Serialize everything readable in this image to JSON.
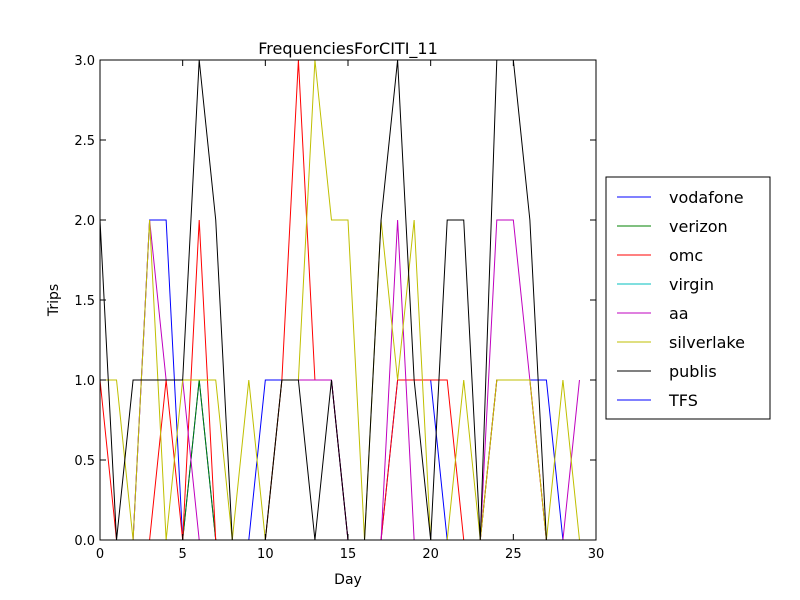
{
  "chart_data": {
    "type": "line",
    "title": "FrequenciesForCITI_11",
    "xlabel": "Day",
    "ylabel": "Trips",
    "xlim": [
      0,
      30
    ],
    "ylim": [
      0,
      3
    ],
    "x_ticks": [
      "0",
      "5",
      "10",
      "15",
      "20",
      "25",
      "30"
    ],
    "y_ticks": [
      "0.0",
      "0.5",
      "1.0",
      "1.5",
      "2.0",
      "2.5",
      "3.0"
    ],
    "grid": false,
    "legend_position": "outside-right",
    "x": [
      0,
      1,
      2,
      3,
      4,
      5,
      6,
      7,
      8,
      9,
      10,
      11,
      12,
      13,
      14,
      15,
      16,
      17,
      18,
      19,
      20,
      21,
      22,
      23,
      24,
      25,
      26,
      27,
      28,
      29
    ],
    "series": [
      {
        "name": "vodafone",
        "color": "#0000ff",
        "values": [
          0,
          0,
          0,
          2,
          2,
          0,
          1,
          0,
          0,
          0,
          1,
          1,
          1,
          1,
          1,
          0,
          0,
          0,
          1,
          1,
          1,
          0,
          0,
          0,
          1,
          1,
          1,
          1,
          0,
          0
        ]
      },
      {
        "name": "verizon",
        "color": "#008000",
        "values": [
          0,
          0,
          0,
          0,
          0,
          0,
          1,
          0,
          0,
          0,
          0,
          0,
          0,
          0,
          0,
          0,
          0,
          0,
          0,
          0,
          0,
          0,
          0,
          0,
          0,
          0,
          0,
          0,
          0,
          0
        ]
      },
      {
        "name": "omc",
        "color": "#ff0000",
        "values": [
          1,
          0,
          0,
          0,
          1,
          0,
          2,
          0,
          0,
          0,
          0,
          1,
          3,
          1,
          1,
          0,
          0,
          0,
          1,
          1,
          1,
          1,
          0,
          0,
          1,
          1,
          1,
          0,
          0,
          0
        ]
      },
      {
        "name": "virgin",
        "color": "#00bfbf",
        "values": [
          0,
          0,
          0,
          0,
          0,
          0,
          0,
          0,
          0,
          0,
          0,
          0,
          0,
          0,
          0,
          0,
          0,
          0,
          0,
          0,
          0,
          0,
          0,
          0,
          0,
          0,
          0,
          0,
          0,
          0
        ]
      },
      {
        "name": "aa",
        "color": "#bf00bf",
        "values": [
          0,
          0,
          0,
          2,
          1,
          1,
          0,
          0,
          0,
          0,
          0,
          1,
          1,
          1,
          1,
          0,
          0,
          0,
          2,
          0,
          0,
          0,
          0,
          0,
          2,
          2,
          1,
          0,
          0,
          1
        ]
      },
      {
        "name": "silverlake",
        "color": "#bfbf00",
        "values": [
          1,
          1,
          0,
          2,
          0,
          1,
          1,
          1,
          0,
          1,
          0,
          1,
          1,
          3,
          2,
          2,
          0,
          2,
          1,
          2,
          0,
          0,
          1,
          0,
          1,
          1,
          1,
          0,
          1,
          0
        ]
      },
      {
        "name": "publis",
        "color": "#000000",
        "values": [
          2,
          0,
          1,
          1,
          1,
          1,
          3,
          2,
          0,
          0,
          0,
          1,
          1,
          0,
          1,
          0,
          0,
          2,
          3,
          1,
          0,
          2,
          2,
          0,
          3,
          3,
          2,
          0,
          0,
          0
        ]
      },
      {
        "name": "TFS",
        "color": "#0000ff",
        "values": [
          0,
          0,
          0,
          0,
          0,
          0,
          0,
          0,
          0,
          0,
          0,
          0,
          0,
          0,
          0,
          0,
          0,
          0,
          0,
          0,
          0,
          0,
          0,
          0,
          0,
          0,
          0,
          0,
          0,
          0
        ]
      }
    ]
  }
}
